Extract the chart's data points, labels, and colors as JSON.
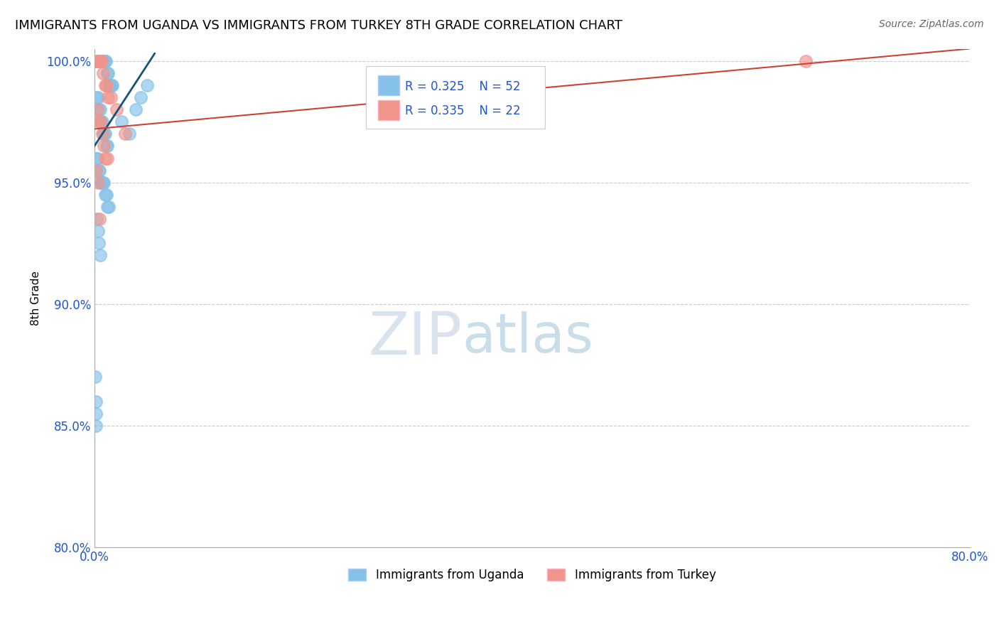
{
  "title": "IMMIGRANTS FROM UGANDA VS IMMIGRANTS FROM TURKEY 8TH GRADE CORRELATION CHART",
  "source": "Source: ZipAtlas.com",
  "ylabel": "8th Grade",
  "xlim": [
    0.0,
    80.0
  ],
  "ylim": [
    80.0,
    100.5
  ],
  "xtick_vals": [
    0,
    16,
    32,
    48,
    64,
    80
  ],
  "xtick_labels": [
    "0.0%",
    "",
    "",
    "",
    "",
    "80.0%"
  ],
  "ytick_vals": [
    80,
    85,
    90,
    95,
    100
  ],
  "ytick_labels": [
    "80.0%",
    "85.0%",
    "90.0%",
    "95.0%",
    "100.0%"
  ],
  "uganda_color": "#85C1E9",
  "turkey_color": "#F1948A",
  "uganda_R": 0.325,
  "uganda_N": 52,
  "turkey_R": 0.335,
  "turkey_N": 22,
  "uganda_line_color": "#1A5276",
  "turkey_line_color": "#CB4335",
  "uganda_line_x": [
    0.0,
    5.5
  ],
  "uganda_line_y": [
    96.5,
    100.3
  ],
  "turkey_line_x": [
    0.0,
    80.0
  ],
  "turkey_line_y": [
    97.2,
    100.5
  ],
  "watermark_zip": "ZIP",
  "watermark_atlas": "atlas",
  "watermark_color_zip": "#C5D8E8",
  "watermark_color_atlas": "#A8C4DC",
  "legend_label_uganda": "Immigrants from Uganda",
  "legend_label_turkey": "Immigrants from Turkey",
  "uganda_x": [
    0.15,
    0.25,
    0.35,
    0.45,
    0.55,
    0.65,
    0.75,
    0.85,
    0.95,
    1.05,
    1.15,
    1.25,
    1.35,
    1.45,
    1.55,
    1.65,
    0.2,
    0.3,
    0.4,
    0.5,
    0.6,
    0.7,
    0.8,
    0.9,
    1.0,
    1.1,
    1.2,
    0.18,
    0.28,
    0.38,
    0.48,
    0.58,
    0.68,
    0.78,
    0.88,
    0.98,
    1.08,
    1.18,
    1.28,
    2.5,
    3.2,
    3.8,
    4.2,
    4.8,
    0.1,
    0.12,
    0.14,
    0.16,
    0.22,
    0.32,
    0.42,
    0.52
  ],
  "uganda_y": [
    100.0,
    100.0,
    100.0,
    100.0,
    100.0,
    100.0,
    100.0,
    100.0,
    100.0,
    100.0,
    99.5,
    99.5,
    99.0,
    99.0,
    99.0,
    99.0,
    98.5,
    98.5,
    98.0,
    98.0,
    97.5,
    97.5,
    97.0,
    97.0,
    97.0,
    96.5,
    96.5,
    96.0,
    96.0,
    95.5,
    95.5,
    95.0,
    95.0,
    95.0,
    95.0,
    94.5,
    94.5,
    94.0,
    94.0,
    97.5,
    97.0,
    98.0,
    98.5,
    99.0,
    87.0,
    86.0,
    85.5,
    85.0,
    93.5,
    93.0,
    92.5,
    92.0
  ],
  "turkey_x": [
    0.2,
    0.35,
    0.5,
    0.65,
    0.8,
    0.95,
    1.1,
    1.25,
    0.25,
    0.4,
    0.55,
    0.7,
    0.85,
    1.0,
    1.15,
    0.15,
    0.3,
    2.0,
    2.8,
    65.0,
    0.45,
    1.5
  ],
  "turkey_y": [
    100.0,
    100.0,
    100.0,
    100.0,
    99.5,
    99.0,
    99.0,
    98.5,
    98.0,
    97.5,
    97.5,
    97.0,
    96.5,
    96.0,
    96.0,
    95.5,
    95.0,
    98.0,
    97.0,
    100.0,
    93.5,
    98.5
  ]
}
